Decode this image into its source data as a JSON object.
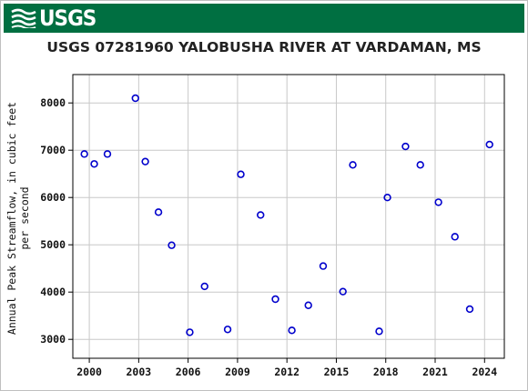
{
  "header": {
    "logo_text": "USGS"
  },
  "chart_data": {
    "type": "scatter",
    "title": "USGS 07281960 YALOBUSHA RIVER AT VARDAMAN, MS",
    "xlabel": "",
    "ylabel_lines": [
      "Annual Peak Streamflow, in cubic feet",
      "per second"
    ],
    "xlim": [
      1999.0,
      2025.2
    ],
    "ylim": [
      2600,
      8600
    ],
    "xticks": [
      2000,
      2003,
      2006,
      2009,
      2012,
      2015,
      2018,
      2021,
      2024
    ],
    "yticks": [
      3000,
      4000,
      5000,
      6000,
      7000,
      8000
    ],
    "grid": true,
    "marker_color": "#0000cc",
    "points": [
      {
        "x": 1999.7,
        "y": 6920
      },
      {
        "x": 2000.3,
        "y": 6710
      },
      {
        "x": 2001.1,
        "y": 6920
      },
      {
        "x": 2002.8,
        "y": 8100
      },
      {
        "x": 2003.4,
        "y": 6760
      },
      {
        "x": 2004.2,
        "y": 5690
      },
      {
        "x": 2005.0,
        "y": 4990
      },
      {
        "x": 2006.1,
        "y": 3150
      },
      {
        "x": 2007.0,
        "y": 4120
      },
      {
        "x": 2008.4,
        "y": 3210
      },
      {
        "x": 2009.2,
        "y": 6490
      },
      {
        "x": 2010.4,
        "y": 5630
      },
      {
        "x": 2011.3,
        "y": 3850
      },
      {
        "x": 2012.3,
        "y": 3190
      },
      {
        "x": 2013.3,
        "y": 3720
      },
      {
        "x": 2014.2,
        "y": 4550
      },
      {
        "x": 2015.4,
        "y": 4010
      },
      {
        "x": 2016.0,
        "y": 6690
      },
      {
        "x": 2017.6,
        "y": 3170
      },
      {
        "x": 2018.1,
        "y": 6000
      },
      {
        "x": 2019.2,
        "y": 7080
      },
      {
        "x": 2020.1,
        "y": 6690
      },
      {
        "x": 2021.2,
        "y": 5900
      },
      {
        "x": 2022.2,
        "y": 5170
      },
      {
        "x": 2023.1,
        "y": 3640
      },
      {
        "x": 2024.3,
        "y": 7120
      }
    ]
  }
}
